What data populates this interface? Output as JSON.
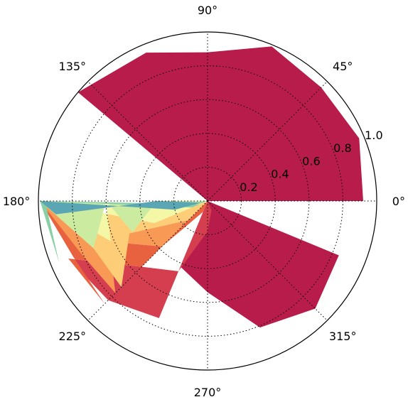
{
  "chart_data": {
    "type": "polar-contourf",
    "colormap": "Spectral",
    "angle_unit": "degrees",
    "theta_ticks": [
      {
        "angle": 0,
        "label": "0°"
      },
      {
        "angle": 45,
        "label": "45°"
      },
      {
        "angle": 90,
        "label": "90°"
      },
      {
        "angle": 135,
        "label": "135°"
      },
      {
        "angle": 180,
        "label": "180°"
      },
      {
        "angle": 225,
        "label": "225°"
      },
      {
        "angle": 270,
        "label": "270°"
      },
      {
        "angle": 315,
        "label": "315°"
      }
    ],
    "r_ticks": [
      {
        "value": 0.2,
        "label": "0.2"
      },
      {
        "value": 0.4,
        "label": "0.4"
      },
      {
        "value": 0.6,
        "label": "0.6"
      },
      {
        "value": 0.8,
        "label": "0.8"
      },
      {
        "value": 1.0,
        "label": "1.0"
      }
    ],
    "rlim": [
      0,
      1.0
    ],
    "grid": true,
    "main_region": {
      "color": "#b71c4b",
      "points": [
        [
          0,
          0
        ],
        [
          -22.5,
          0.84
        ],
        [
          -45,
          0.9
        ],
        [
          -67.5,
          0.81
        ],
        [
          -90,
          0.54
        ],
        [
          -112.5,
          0.42
        ],
        [
          -112.5,
          0.3
        ],
        [
          -90,
          0.11
        ],
        [
          -67.5,
          0.01
        ],
        [
          -45,
          0.0
        ],
        [
          0,
          0.0
        ]
      ]
    },
    "main_region_top": {
      "color": "#b71c4b",
      "points": [
        [
          0,
          0
        ],
        [
          0,
          0.92
        ],
        [
          22.5,
          0.97
        ],
        [
          45,
          0.95
        ],
        [
          67.5,
          0.99
        ],
        [
          90,
          0.88
        ],
        [
          112.5,
          0.95
        ],
        [
          140,
          1.0
        ],
        [
          140,
          0.0
        ]
      ]
    },
    "bands": [
      {
        "color": "#d53e4f",
        "points": [
          [
            0,
            0
          ],
          [
            -112.5,
            0.3
          ],
          [
            -112.5,
            0.75
          ],
          [
            -135,
            0.83
          ],
          [
            -157.5,
            0.89
          ],
          [
            -135,
            0.55
          ],
          [
            -112.5,
            0.45
          ],
          [
            -90,
            0.18
          ],
          [
            -67.5,
            0.06
          ]
        ]
      },
      {
        "color": "#e8623f",
        "points": [
          [
            0,
            0
          ],
          [
            -135,
            0.55
          ],
          [
            -157.5,
            0.89
          ],
          [
            -135,
            0.86
          ],
          [
            -157.5,
            0.86
          ],
          [
            -180,
            0.99
          ],
          [
            -157.5,
            0.63
          ],
          [
            -135,
            0.38
          ],
          [
            -112.5,
            0.07
          ]
        ]
      },
      {
        "color": "#f89a55",
        "points": [
          [
            0,
            0
          ],
          [
            -135,
            0.38
          ],
          [
            -157.5,
            0.63
          ],
          [
            -135,
            0.77
          ],
          [
            -157.5,
            0.81
          ],
          [
            -180,
            0.99
          ],
          [
            -157.5,
            0.5
          ],
          [
            -135,
            0.16
          ]
        ]
      },
      {
        "color": "#fecd78",
        "points": [
          [
            0,
            0
          ],
          [
            -135,
            0.16
          ],
          [
            -157.5,
            0.5
          ],
          [
            -135,
            0.72
          ],
          [
            -157.5,
            0.73
          ],
          [
            -180,
            0.99
          ],
          [
            -157.5,
            0.34
          ]
        ]
      },
      {
        "color": "#f3f7a6",
        "points": [
          [
            0,
            0
          ],
          [
            -157.5,
            0.34
          ],
          [
            -180,
            0.99
          ],
          [
            -157.5,
            0.62
          ],
          [
            -180,
            0.6
          ],
          [
            -157.5,
            0.48
          ],
          [
            -180,
            0.3
          ]
        ]
      },
      {
        "color": "#cbeba0",
        "points": [
          [
            0,
            0
          ],
          [
            -180,
            0.3
          ],
          [
            -157.5,
            0.48
          ],
          [
            -180,
            0.6
          ],
          [
            -157.5,
            0.73
          ],
          [
            -180,
            0.99
          ],
          [
            -157.5,
            0.1
          ]
        ]
      },
      {
        "color": "#88cfa4",
        "points": [
          [
            0,
            0
          ],
          [
            -157.5,
            0.1
          ],
          [
            -180,
            0.99
          ],
          [
            -157.5,
            0.95
          ],
          [
            -180,
            0.96
          ],
          [
            -157.5,
            0.05
          ]
        ]
      },
      {
        "color": "#5aa6b5",
        "points": [
          [
            0,
            0
          ],
          [
            -165,
            0.2
          ],
          [
            -180,
            0.99
          ],
          [
            -175,
            0.9
          ],
          [
            -180,
            0.3
          ],
          [
            -170,
            0.05
          ]
        ]
      }
    ]
  }
}
